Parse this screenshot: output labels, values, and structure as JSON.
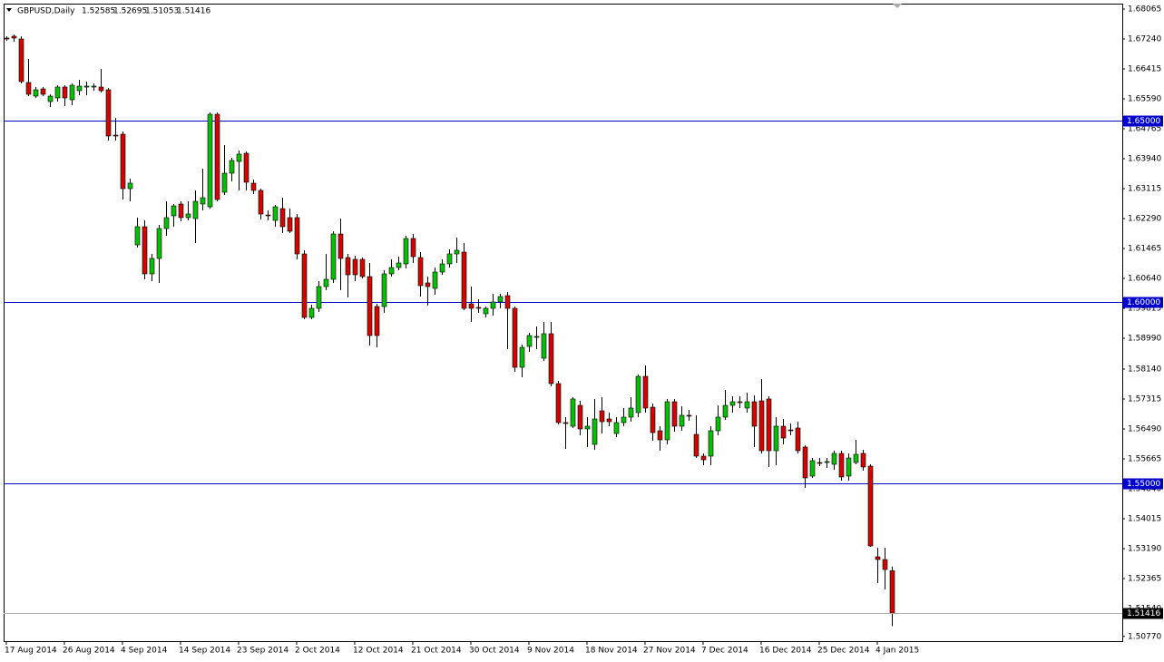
{
  "chart_data": {
    "type": "candlestick",
    "title": "GBPUSD,Daily",
    "categories": [
      "17 Aug 2014",
      null,
      null,
      null,
      null,
      null,
      null,
      null,
      "26 Aug 2014",
      null,
      null,
      null,
      null,
      null,
      null,
      null,
      "4 Sep 2014",
      null,
      null,
      null,
      null,
      null,
      null,
      null,
      "14 Sep 2014",
      null,
      null,
      null,
      null,
      null,
      null,
      null,
      "23 Sep 2014",
      null,
      null,
      null,
      null,
      null,
      null,
      null,
      "2 Oct 2014",
      null,
      null,
      null,
      null,
      null,
      null,
      null,
      "12 Oct 2014",
      null,
      null,
      null,
      null,
      null,
      null,
      null,
      "21 Oct 2014",
      null,
      null,
      null,
      null,
      null,
      null,
      null,
      "30 Oct 2014",
      null,
      null,
      null,
      null,
      null,
      null,
      null,
      "9 Nov 2014",
      null,
      null,
      null,
      null,
      null,
      null,
      null,
      "18 Nov 2014",
      null,
      null,
      null,
      null,
      null,
      null,
      null,
      "27 Nov 2014",
      null,
      null,
      null,
      null,
      null,
      null,
      null,
      "7 Dec 2014",
      null,
      null,
      null,
      null,
      null,
      null,
      null,
      "16 Dec 2014",
      null,
      null,
      null,
      null,
      null,
      null,
      null,
      "25 Dec 2014",
      null,
      null,
      null,
      null,
      null,
      null,
      null,
      "4 Jan 2015",
      null,
      null
    ],
    "open": [
      1.67265,
      1.67315,
      1.6724,
      1.6604,
      1.65665,
      1.65865,
      1.65515,
      1.65615,
      1.65915,
      1.65565,
      1.65815,
      1.65915,
      1.65915,
      1.65915,
      1.6584,
      1.6459,
      1.64615,
      1.63115,
      1.61565,
      1.62065,
      1.60765,
      1.6119,
      1.62015,
      1.62365,
      1.6269,
      1.62315,
      1.6229,
      1.6269,
      1.62615,
      1.65165,
      1.63015,
      1.6354,
      1.63865,
      1.6409,
      1.63265,
      1.63065,
      1.6239,
      1.6224,
      1.62565,
      1.62315,
      1.62315,
      1.61315,
      1.59565,
      1.59815,
      1.60415,
      1.60615,
      1.61865,
      1.61215,
      1.61165,
      1.61165,
      1.6069,
      1.59865,
      1.59865,
      1.60765,
      1.6094,
      1.6104,
      1.6174,
      1.61215,
      1.60515,
      1.60365,
      1.60815,
      1.6104,
      1.61315,
      1.61365,
      1.5994,
      1.5984,
      1.59665,
      1.59815,
      1.5999,
      1.60165,
      1.59815,
      1.5819,
      1.58765,
      1.59015,
      1.5844,
      1.59115,
      1.5774,
      1.56665,
      1.56565,
      1.5714,
      1.5649,
      1.56065,
      1.5699,
      1.56765,
      1.56365,
      1.56665,
      1.56815,
      1.5694,
      1.5794,
      1.5709,
      1.5644,
      1.5619,
      1.5724,
      1.56565,
      1.56865,
      1.5634,
      1.5574,
      1.5574,
      1.5644,
      1.56815,
      1.5714,
      1.5724,
      1.57065,
      1.5724,
      1.57265,
      1.57315,
      1.5589,
      1.56565,
      1.56465,
      1.56515,
      1.5599,
      1.5519,
      1.55565,
      1.55565,
      1.55515,
      1.55815,
      1.5519,
      1.55565,
      1.55815,
      1.55465,
      1.52965,
      1.5289,
      1.52585
    ],
    "high": [
      1.67315,
      1.67365,
      1.67315,
      1.6669,
      1.65915,
      1.65915,
      1.65715,
      1.65965,
      1.65965,
      1.66015,
      1.66115,
      1.66065,
      1.66015,
      1.66415,
      1.6589,
      1.65065,
      1.6469,
      1.6339,
      1.62315,
      1.6224,
      1.61315,
      1.62115,
      1.62765,
      1.6269,
      1.62765,
      1.62765,
      1.63065,
      1.63665,
      1.65215,
      1.65215,
      1.64315,
      1.63965,
      1.64165,
      1.6414,
      1.63365,
      1.63115,
      1.62515,
      1.62665,
      1.62865,
      1.62565,
      1.62415,
      1.61415,
      1.59915,
      1.60565,
      1.61315,
      1.6194,
      1.6229,
      1.61315,
      1.61265,
      1.61215,
      1.61065,
      1.5994,
      1.60865,
      1.61165,
      1.6124,
      1.61815,
      1.61865,
      1.61365,
      1.6069,
      1.6094,
      1.61165,
      1.6144,
      1.61765,
      1.61615,
      1.60415,
      1.60065,
      1.59865,
      1.60215,
      1.60215,
      1.60265,
      1.59865,
      1.58815,
      1.5914,
      1.59315,
      1.5944,
      1.5944,
      1.57815,
      1.56815,
      1.57365,
      1.57265,
      1.56815,
      1.57315,
      1.57365,
      1.5694,
      1.56815,
      1.57065,
      1.57365,
      1.5799,
      1.5824,
      1.5719,
      1.56565,
      1.57315,
      1.57315,
      1.57115,
      1.57015,
      1.56865,
      1.55815,
      1.56565,
      1.5714,
      1.57565,
      1.5739,
      1.5739,
      1.5749,
      1.57415,
      1.57865,
      1.5739,
      1.56815,
      1.56765,
      1.5664,
      1.5669,
      1.5604,
      1.5569,
      1.5569,
      1.5569,
      1.5589,
      1.5589,
      1.55815,
      1.5619,
      1.55915,
      1.55515,
      1.53215,
      1.53215,
      1.52695
    ],
    "low": [
      1.6719,
      1.67165,
      1.66015,
      1.65665,
      1.65615,
      1.65665,
      1.65365,
      1.65515,
      1.6539,
      1.65415,
      1.6569,
      1.6569,
      1.65815,
      1.65765,
      1.6444,
      1.6444,
      1.62815,
      1.62765,
      1.6149,
      1.60615,
      1.60565,
      1.60515,
      1.61815,
      1.62065,
      1.62215,
      1.6224,
      1.61615,
      1.62515,
      1.62565,
      1.62765,
      1.6294,
      1.63315,
      1.63065,
      1.63065,
      1.62965,
      1.62265,
      1.6224,
      1.62065,
      1.6189,
      1.6189,
      1.61165,
      1.59515,
      1.59515,
      1.59715,
      1.60315,
      1.60515,
      1.60315,
      1.60115,
      1.60565,
      1.6064,
      1.5879,
      1.5874,
      1.5969,
      1.6069,
      1.60865,
      1.60915,
      1.61065,
      1.6014,
      1.5989,
      1.6019,
      1.6074,
      1.6094,
      1.61065,
      1.59765,
      1.5944,
      1.5969,
      1.59565,
      1.59615,
      1.59815,
      1.5869,
      1.58065,
      1.57915,
      1.58615,
      1.5869,
      1.58365,
      1.57665,
      1.56615,
      1.5594,
      1.56515,
      1.56315,
      1.5599,
      1.55915,
      1.56365,
      1.56565,
      1.56265,
      1.56565,
      1.5669,
      1.56815,
      1.5694,
      1.56165,
      1.5589,
      1.56065,
      1.56415,
      1.5644,
      1.56715,
      1.5569,
      1.5549,
      1.5549,
      1.56315,
      1.5674,
      1.5694,
      1.57065,
      1.5694,
      1.5599,
      1.55815,
      1.5544,
      1.5549,
      1.56065,
      1.56315,
      1.55815,
      1.54865,
      1.5514,
      1.55465,
      1.55415,
      1.55365,
      1.55065,
      1.55065,
      1.55515,
      1.5534,
      1.5324,
      1.5224,
      1.52065,
      1.51053
    ],
    "close": [
      1.6724,
      1.67265,
      1.66065,
      1.65715,
      1.6584,
      1.65715,
      1.65665,
      1.65915,
      1.65615,
      1.65965,
      1.6594,
      1.6594,
      1.6594,
      1.65815,
      1.64565,
      1.64565,
      1.63115,
      1.63265,
      1.62065,
      1.60765,
      1.6119,
      1.62015,
      1.62315,
      1.6264,
      1.62315,
      1.62415,
      1.62765,
      1.62865,
      1.65165,
      1.62815,
      1.6354,
      1.6389,
      1.64065,
      1.6329,
      1.63065,
      1.62415,
      1.62365,
      1.62615,
      1.62065,
      1.6194,
      1.61315,
      1.59565,
      1.59815,
      1.60415,
      1.60615,
      1.61865,
      1.6119,
      1.6074,
      1.6074,
      1.6069,
      1.59065,
      1.59065,
      1.60765,
      1.6094,
      1.61065,
      1.6174,
      1.6124,
      1.6044,
      1.60415,
      1.60815,
      1.6104,
      1.61315,
      1.61415,
      1.59815,
      1.59815,
      1.59815,
      1.59815,
      1.5999,
      1.6014,
      1.59815,
      1.5819,
      1.5874,
      1.59065,
      1.5904,
      1.59115,
      1.5774,
      1.56665,
      1.5664,
      1.57315,
      1.5649,
      1.56565,
      1.56765,
      1.5669,
      1.5669,
      1.56665,
      1.56815,
      1.57065,
      1.5794,
      1.57065,
      1.5639,
      1.5619,
      1.5724,
      1.56565,
      1.56865,
      1.5684,
      1.5574,
      1.5564,
      1.5644,
      1.56815,
      1.5714,
      1.5724,
      1.57215,
      1.5724,
      1.56565,
      1.5589,
      1.5589,
      1.56565,
      1.5624,
      1.5644,
      1.5589,
      1.5514,
      1.55615,
      1.5554,
      1.5559,
      1.55815,
      1.55165,
      1.5569,
      1.5579,
      1.5544,
      1.53265,
      1.5289,
      1.52615,
      1.51416
    ],
    "up_color": "#00c000",
    "down_color": "#d40000",
    "wick_color": "#000000",
    "ylim": [
      1.5064,
      1.68215
    ],
    "yticks": [
      {
        "value": 1.68065,
        "label": "1.68065"
      },
      {
        "value": 1.6724,
        "label": "1.67240"
      },
      {
        "value": 1.66415,
        "label": "1.66415"
      },
      {
        "value": 1.6559,
        "label": "1.65590"
      },
      {
        "value": 1.64765,
        "label": "1.64765"
      },
      {
        "value": 1.6394,
        "label": "1.63940"
      },
      {
        "value": 1.63115,
        "label": "1.63115"
      },
      {
        "value": 1.6229,
        "label": "1.62290"
      },
      {
        "value": 1.61465,
        "label": "1.61465"
      },
      {
        "value": 1.6064,
        "label": "1.60640"
      },
      {
        "value": 1.59815,
        "label": "1.59815"
      },
      {
        "value": 1.5899,
        "label": "1.58990"
      },
      {
        "value": 1.5814,
        "label": "1.58140"
      },
      {
        "value": 1.57315,
        "label": "1.57315"
      },
      {
        "value": 1.5649,
        "label": "1.56490"
      },
      {
        "value": 1.55665,
        "label": "1.55665"
      },
      {
        "value": 1.5484,
        "label": "1.54840"
      },
      {
        "value": 1.54015,
        "label": "1.54015"
      },
      {
        "value": 1.5319,
        "label": "1.53190"
      },
      {
        "value": 1.52365,
        "label": "1.52365"
      },
      {
        "value": 1.5154,
        "label": "1.51540"
      },
      {
        "value": 1.5077,
        "label": "1.50770"
      }
    ],
    "levels": [
      {
        "value": 1.65,
        "label": "1.65000"
      },
      {
        "value": 1.6,
        "label": "1.60000"
      },
      {
        "value": 1.55,
        "label": "1.55000"
      }
    ],
    "level_color": "#0000cc",
    "grid": false
  }
}
